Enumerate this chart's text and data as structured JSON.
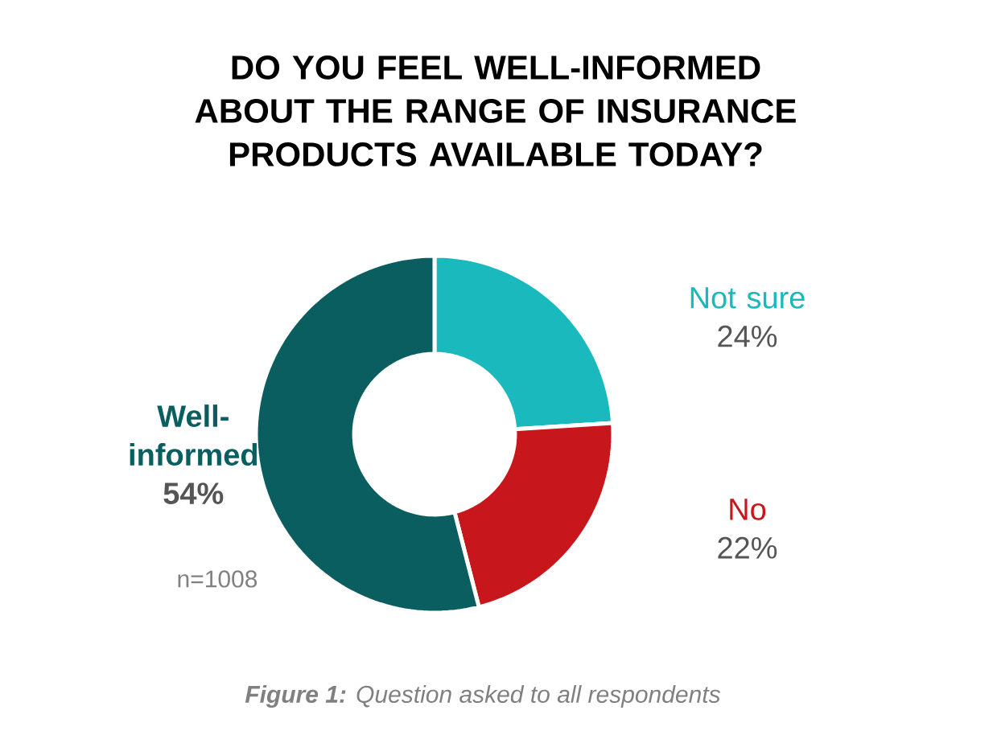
{
  "chart_data": {
    "type": "donut",
    "title": "DO YOU FEEL WELL-INFORMED ABOUT THE RANGE OF INSURANCE PRODUCTS AVAILABLE TODAY?",
    "categories": [
      "Not sure",
      "No",
      "Well-informed"
    ],
    "values": [
      24,
      22,
      54
    ],
    "value_labels": [
      "24%",
      "22%",
      "54%"
    ],
    "colors": [
      "#1ab9bd",
      "#c8161d",
      "#0b5e60"
    ],
    "annotations": [
      "n=1008",
      "**Figure 1:** Question asked to all respondents"
    ]
  }
}
